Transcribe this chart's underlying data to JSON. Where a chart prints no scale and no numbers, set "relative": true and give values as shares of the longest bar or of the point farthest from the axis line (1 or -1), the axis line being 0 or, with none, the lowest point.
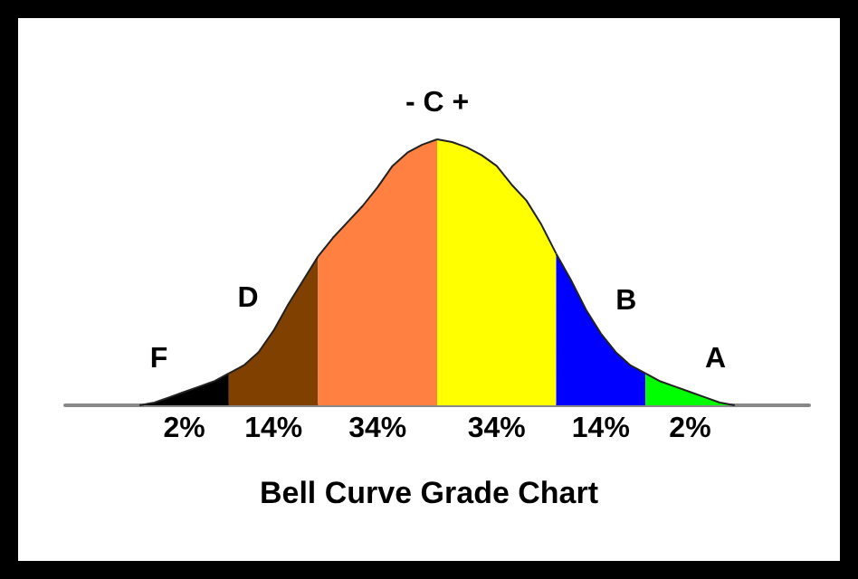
{
  "chart_data": {
    "type": "area",
    "title": "Bell Curve Grade Chart",
    "relative": true,
    "categories": [
      null,
      null,
      null,
      null,
      null,
      null,
      null,
      null,
      null,
      null,
      null,
      null,
      null,
      null,
      null,
      null,
      null,
      null,
      null,
      null,
      null,
      null,
      null,
      null,
      null,
      null,
      null,
      null,
      null,
      null,
      null,
      null,
      null,
      null,
      null,
      null,
      null,
      null,
      null,
      null,
      null,
      null,
      null,
      null,
      null,
      null,
      null,
      null,
      null,
      null,
      null
    ],
    "series": [
      {
        "name": "F",
        "color": "#000000",
        "values": [
          null,
          null,
          null,
          null,
          null,
          0,
          0.01,
          0.03,
          0.05,
          0.07,
          0.09,
          0.12,
          null,
          null,
          null,
          null,
          null,
          null,
          null,
          null,
          null,
          null,
          null,
          null,
          null,
          null,
          null,
          null,
          null,
          null,
          null,
          null,
          null,
          null,
          null,
          null,
          null,
          null,
          null,
          null,
          null,
          null,
          null,
          null,
          null,
          null,
          null,
          null,
          null,
          null,
          null
        ]
      },
      {
        "name": "D",
        "color": "#804000",
        "values": [
          null,
          null,
          null,
          null,
          null,
          null,
          null,
          null,
          null,
          null,
          null,
          0.12,
          0.15,
          0.2,
          0.28,
          0.38,
          0.47,
          0.56,
          null,
          null,
          null,
          null,
          null,
          null,
          null,
          null,
          null,
          null,
          null,
          null,
          null,
          null,
          null,
          null,
          null,
          null,
          null,
          null,
          null,
          null,
          null,
          null,
          null,
          null,
          null,
          null,
          null,
          null,
          null,
          null,
          null
        ]
      },
      {
        "color": "#ff8040",
        "values": [
          null,
          null,
          null,
          null,
          null,
          null,
          null,
          null,
          null,
          null,
          null,
          null,
          null,
          null,
          null,
          null,
          null,
          0.56,
          0.63,
          0.69,
          0.75,
          0.82,
          0.9,
          0.95,
          0.98,
          1,
          null,
          null,
          null,
          null,
          null,
          null,
          null,
          null,
          null,
          null,
          null,
          null,
          null,
          null,
          null,
          null,
          null,
          null,
          null,
          null,
          null,
          null,
          null,
          null,
          null
        ]
      },
      {
        "color": "#ffff00",
        "values": [
          null,
          null,
          null,
          null,
          null,
          null,
          null,
          null,
          null,
          null,
          null,
          null,
          null,
          null,
          null,
          null,
          null,
          null,
          null,
          null,
          null,
          null,
          null,
          null,
          null,
          1,
          0.99,
          0.97,
          0.94,
          0.9,
          0.83,
          0.77,
          0.68,
          0.57,
          null,
          null,
          null,
          null,
          null,
          null,
          null,
          null,
          null,
          null,
          null,
          null,
          null,
          null,
          null,
          null,
          null
        ]
      },
      {
        "name": "B",
        "color": "#0000ff",
        "values": [
          null,
          null,
          null,
          null,
          null,
          null,
          null,
          null,
          null,
          null,
          null,
          null,
          null,
          null,
          null,
          null,
          null,
          null,
          null,
          null,
          null,
          null,
          null,
          null,
          null,
          null,
          null,
          null,
          null,
          null,
          null,
          null,
          null,
          0.57,
          0.47,
          0.36,
          0.27,
          0.2,
          0.15,
          0.12,
          null,
          null,
          null,
          null,
          null,
          null,
          null,
          null,
          null,
          null,
          null
        ]
      },
      {
        "name": "A",
        "color": "#00ff00",
        "values": [
          null,
          null,
          null,
          null,
          null,
          null,
          null,
          null,
          null,
          null,
          null,
          null,
          null,
          null,
          null,
          null,
          null,
          null,
          null,
          null,
          null,
          null,
          null,
          null,
          null,
          null,
          null,
          null,
          null,
          null,
          null,
          null,
          null,
          null,
          null,
          null,
          null,
          null,
          null,
          0.12,
          0.09,
          0.07,
          0.05,
          0.03,
          0.01,
          0,
          null,
          null,
          null,
          null,
          null
        ]
      }
    ],
    "annotations": [
      "- C +",
      "2%",
      "14%",
      "34%",
      "34%",
      "14%",
      "2%"
    ]
  }
}
